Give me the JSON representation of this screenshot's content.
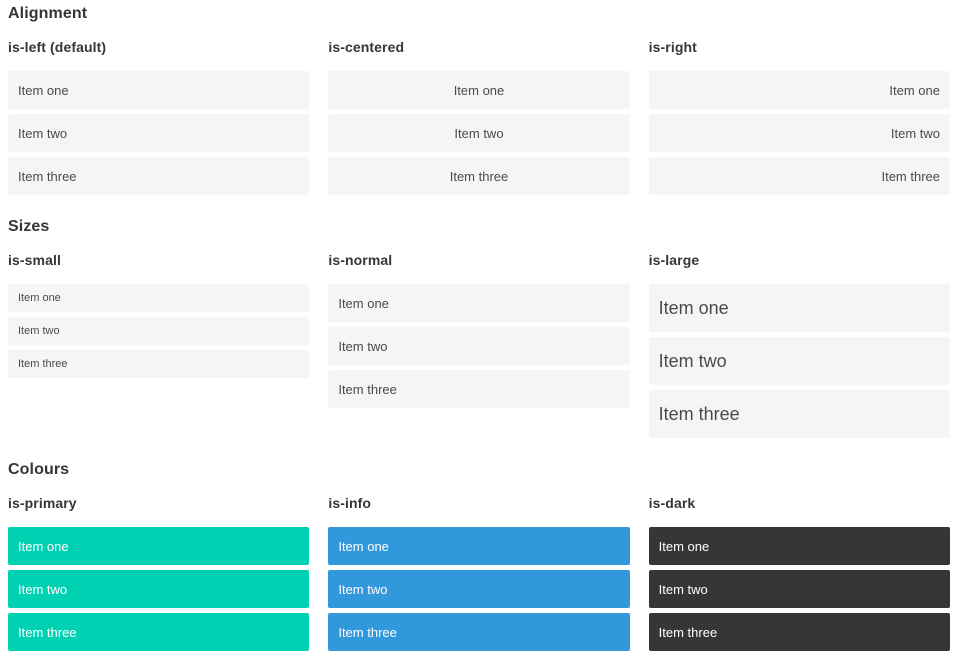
{
  "sections": [
    {
      "title": "Alignment",
      "examples": [
        {
          "label": "is-left (default)",
          "items": [
            "Item one",
            "Item two",
            "Item three"
          ]
        },
        {
          "label": "is-centered",
          "items": [
            "Item one",
            "Item two",
            "Item three"
          ]
        },
        {
          "label": "is-right",
          "items": [
            "Item one",
            "Item two",
            "Item three"
          ]
        }
      ]
    },
    {
      "title": "Sizes",
      "examples": [
        {
          "label": "is-small",
          "items": [
            "Item one",
            "Item two",
            "Item three"
          ]
        },
        {
          "label": "is-normal",
          "items": [
            "Item one",
            "Item two",
            "Item three"
          ]
        },
        {
          "label": "is-large",
          "items": [
            "Item one",
            "Item two",
            "Item three"
          ]
        }
      ]
    },
    {
      "title": "Colours",
      "examples": [
        {
          "label": "is-primary",
          "items": [
            "Item one",
            "Item two",
            "Item three"
          ]
        },
        {
          "label": "is-info",
          "items": [
            "Item one",
            "Item two",
            "Item three"
          ]
        },
        {
          "label": "is-dark",
          "items": [
            "Item one",
            "Item two",
            "Item three"
          ]
        }
      ]
    }
  ],
  "colors": {
    "light": {
      "bg": "#f5f5f5",
      "text": "#4a4a4a"
    },
    "primary": {
      "bg": "#00d1b2",
      "text": "#ffffff"
    },
    "info": {
      "bg": "#3298dc",
      "text": "#ffffff"
    },
    "dark": {
      "bg": "#363636",
      "text": "#ffffff"
    }
  }
}
